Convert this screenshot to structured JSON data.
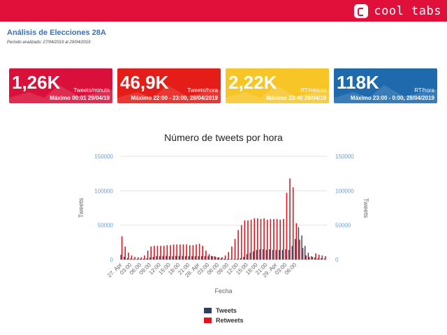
{
  "brand": {
    "name": "cool tabs"
  },
  "report": {
    "title": "Análisis de Elecciones 28A",
    "period_label": "Periodo analizado: ",
    "period_value": "27/04/2019 al 29/04/2019"
  },
  "kpis": [
    {
      "value": "1,26K",
      "unit": "Tweets/minuto",
      "max": "Máximo 00:01 29/04/19",
      "color": "#d9113a"
    },
    {
      "value": "46,9K",
      "unit": "Tweets/hora",
      "max": "Máximo 22:00 - 23:00, 28/04/2019",
      "color": "#e51d19"
    },
    {
      "value": "2,22K",
      "unit": "RT/minuto",
      "max": "Máximo 23:40 28/04/19",
      "color": "#f7c525"
    },
    {
      "value": "118K",
      "unit": "RT/hora",
      "max": "Máximo 23:00 - 0:00, 28/04/2019",
      "color": "#1f6aad"
    }
  ],
  "chart_data": {
    "type": "bar",
    "title": "Número de tweets por hora",
    "xlabel": "Fecha",
    "ylabel": "Tweets",
    "ylim": [
      0,
      150000
    ],
    "yticks": [
      0,
      50000,
      100000,
      150000
    ],
    "grid": true,
    "legend_position": "bottom",
    "x_tick_labels": [
      "27. Apr",
      "03:00",
      "06:00",
      "09:00",
      "12:00",
      "15:00",
      "18:00",
      "21:00",
      "28. Apr",
      "03:00",
      "06:00",
      "09:00",
      "12:00",
      "15:00",
      "18:00",
      "21:00",
      "29. Apr",
      "03:00",
      "06:00"
    ],
    "series": [
      {
        "name": "Tweets",
        "color": "#2f3f5f",
        "values": [
          7000,
          4000,
          2000,
          1500,
          1000,
          1000,
          1200,
          1500,
          2000,
          3000,
          4000,
          5000,
          5000,
          5500,
          5500,
          5000,
          5000,
          5500,
          5500,
          5500,
          5000,
          5000,
          5000,
          5000,
          5000,
          5000,
          5000,
          5000,
          5500,
          5000,
          3000,
          2000,
          1500,
          1000,
          800,
          800,
          1200,
          2000,
          4000,
          8000,
          10000,
          12000,
          14000,
          15000,
          15000,
          14000,
          15000,
          14000,
          14000,
          14000,
          14000,
          15000,
          14000,
          20000,
          30000,
          46900,
          35000,
          20000,
          10000,
          5000,
          3000,
          2000,
          2000,
          1500
        ]
      },
      {
        "name": "Retweets",
        "color": "#e0141e",
        "values": [
          34000,
          19000,
          10000,
          6000,
          4000,
          3500,
          3500,
          6000,
          13000,
          19000,
          20000,
          20000,
          20000,
          20000,
          21000,
          21000,
          22000,
          22000,
          22000,
          22000,
          22000,
          21000,
          21000,
          22000,
          23000,
          20000,
          13000,
          8000,
          5000,
          4000,
          3500,
          3500,
          6000,
          11000,
          19000,
          30000,
          43000,
          50000,
          57000,
          57000,
          58000,
          60000,
          60000,
          59000,
          60000,
          58000,
          59000,
          59000,
          59000,
          58000,
          59000,
          97000,
          118000,
          105000,
          53000,
          29000,
          17000,
          6000,
          4000,
          4000,
          9000,
          7000,
          6000,
          5000
        ]
      }
    ]
  }
}
